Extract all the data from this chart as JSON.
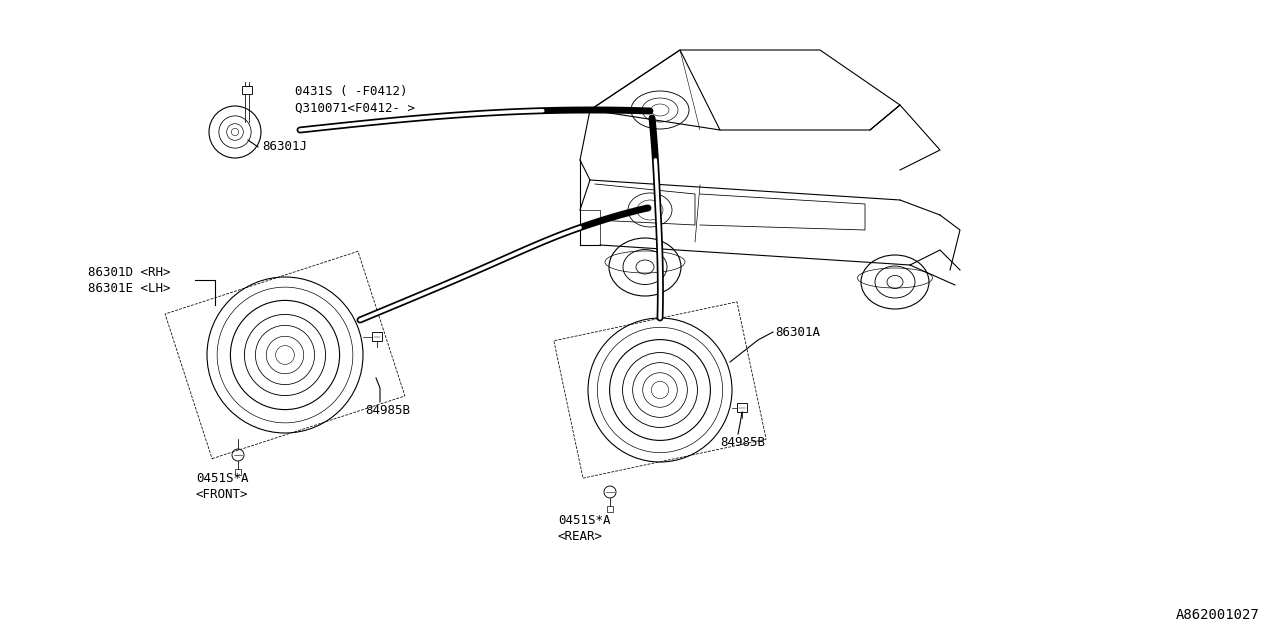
{
  "background_color": "#ffffff",
  "line_color": "#000000",
  "diagram_id": "A862001027",
  "font_family": "monospace",
  "font_size": 9,
  "tweeter_label1": "0431S ( -F0412)",
  "tweeter_label2": "Q310071<F0412- >",
  "tweeter_part": "86301J",
  "front_speaker_label1": "86301D <RH>",
  "front_speaker_label2": "86301E <LH>",
  "rear_speaker_label": "86301A",
  "connector_front": "84985B",
  "connector_rear": "84985B",
  "bolt_front1": "0451S*A",
  "bolt_front2": "<FRONT>",
  "bolt_rear1": "0451S*A",
  "bolt_rear2": "<REAR>"
}
